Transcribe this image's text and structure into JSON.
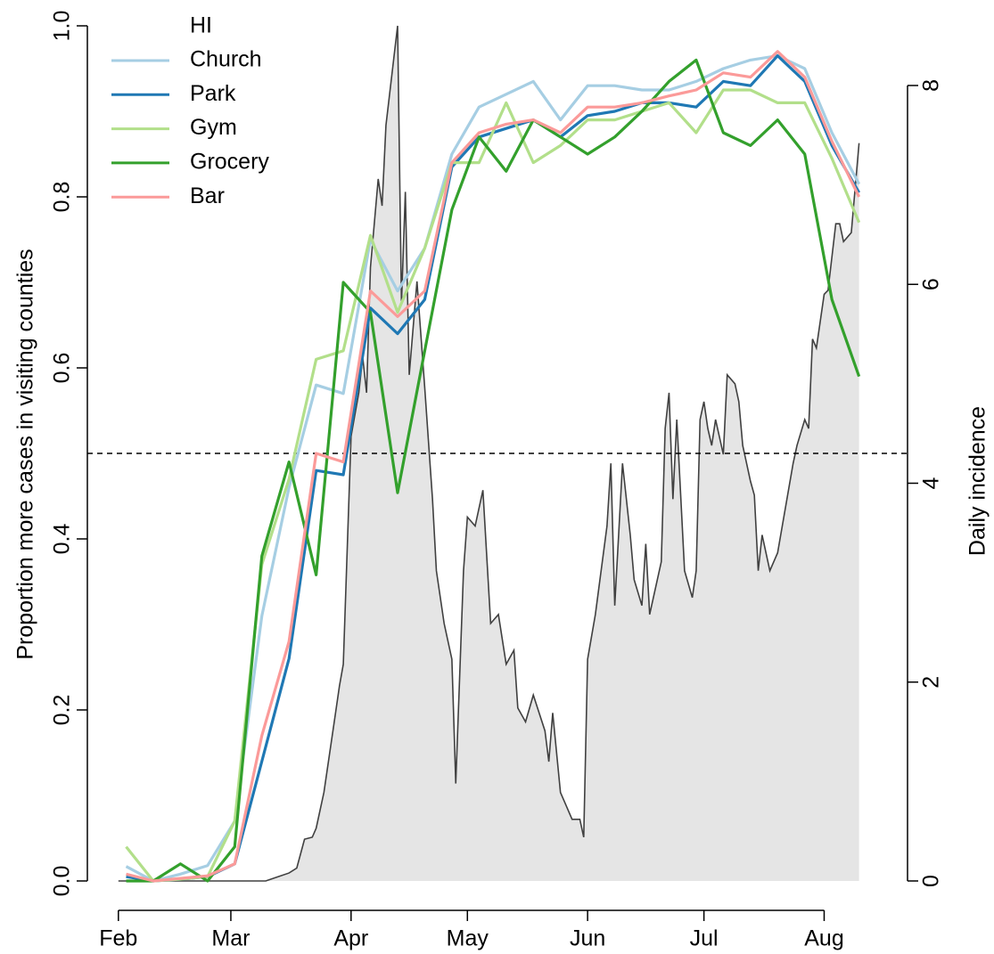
{
  "chart_data": {
    "type": "line",
    "ylabel": "Proportion more cases in visiting counties",
    "y2label": "Daily incidence",
    "legend_title": "HI",
    "legend": "top-left",
    "xlim": [
      -8,
      203.5
    ],
    "xticks": [
      {
        "value": 0,
        "label": "Feb"
      },
      {
        "value": 29,
        "label": "Mar"
      },
      {
        "value": 60,
        "label": "Apr"
      },
      {
        "value": 90,
        "label": "May"
      },
      {
        "value": 121,
        "label": "Jun"
      },
      {
        "value": 151,
        "label": "Jul"
      },
      {
        "value": 182,
        "label": "Aug"
      }
    ],
    "ylim": [
      0,
      1
    ],
    "yticks": [
      {
        "value": 0,
        "label": "0.0"
      },
      {
        "value": 0.2,
        "label": "0.2"
      },
      {
        "value": 0.4,
        "label": "0.4"
      },
      {
        "value": 0.6,
        "label": "0.6"
      },
      {
        "value": 0.8,
        "label": "0.8"
      },
      {
        "value": 1,
        "label": "1.0"
      }
    ],
    "y2lim": [
      0,
      8.6
    ],
    "y2ticks": [
      0,
      2,
      4,
      6,
      8
    ],
    "hline": 0.5,
    "x": [
      2,
      9,
      16,
      23,
      30,
      37,
      44,
      51,
      58,
      65,
      72,
      79,
      86,
      93,
      100,
      107,
      114,
      121,
      128,
      135,
      142,
      149,
      156,
      163,
      170,
      177,
      184,
      191
    ],
    "series": [
      {
        "name": "Church",
        "color": "#a6cee3",
        "values": [
          0.017,
          0.0,
          0.008,
          0.018,
          0.07,
          0.31,
          0.46,
          0.58,
          0.57,
          0.75,
          0.69,
          0.74,
          0.85,
          0.905,
          0.92,
          0.935,
          0.89,
          0.93,
          0.93,
          0.925,
          0.925,
          0.935,
          0.95,
          0.96,
          0.965,
          0.95,
          0.875,
          0.815
        ]
      },
      {
        "name": "Park",
        "color": "#1f78b4",
        "values": [
          0.005,
          0.0,
          0.002,
          0.005,
          0.02,
          0.14,
          0.26,
          0.48,
          0.475,
          0.67,
          0.64,
          0.68,
          0.835,
          0.87,
          0.88,
          0.89,
          0.87,
          0.895,
          0.9,
          0.91,
          0.91,
          0.905,
          0.935,
          0.93,
          0.965,
          0.935,
          0.86,
          0.805
        ]
      },
      {
        "name": "Gym",
        "color": "#b2df8a",
        "values": [
          0.04,
          0.0,
          0.002,
          0.005,
          0.07,
          0.37,
          0.47,
          0.61,
          0.62,
          0.755,
          0.665,
          0.74,
          0.84,
          0.84,
          0.91,
          0.84,
          0.86,
          0.89,
          0.89,
          0.9,
          0.91,
          0.875,
          0.925,
          0.925,
          0.91,
          0.91,
          0.845,
          0.77
        ]
      },
      {
        "name": "Grocery",
        "color": "#33a02c",
        "values": [
          0.0,
          0.0,
          0.02,
          0.0,
          0.04,
          0.38,
          0.49,
          0.358,
          0.7,
          0.665,
          0.454,
          0.62,
          0.785,
          0.87,
          0.83,
          0.89,
          0.87,
          0.85,
          0.87,
          0.9,
          0.935,
          0.96,
          0.875,
          0.86,
          0.89,
          0.85,
          0.68,
          0.59
        ]
      },
      {
        "name": "Bar",
        "color": "#fb9a99",
        "values": [
          0.008,
          0.0,
          0.003,
          0.006,
          0.02,
          0.17,
          0.28,
          0.5,
          0.49,
          0.69,
          0.66,
          0.69,
          0.84,
          0.875,
          0.885,
          0.89,
          0.875,
          0.905,
          0.905,
          0.91,
          0.918,
          0.925,
          0.945,
          0.94,
          0.97,
          0.94,
          0.865,
          0.8
        ]
      }
    ],
    "incidence": {
      "axis": "y2",
      "color": "#404040",
      "fill": "#e5e5e5",
      "x": [
        0,
        38,
        41,
        44,
        46,
        48,
        50,
        51,
        53,
        56,
        57,
        58,
        60,
        62,
        63,
        64,
        65,
        67,
        68,
        69,
        72,
        73,
        74,
        75,
        77,
        79,
        81,
        82,
        84,
        86,
        87,
        89,
        90,
        92,
        94,
        96,
        98,
        100,
        102,
        103,
        105,
        107,
        110,
        111,
        112,
        114,
        117,
        119,
        120,
        121,
        123,
        126,
        127,
        128,
        129,
        130,
        132,
        133,
        135,
        136,
        137,
        140,
        141,
        142,
        143,
        144,
        146,
        148,
        149,
        150,
        151,
        152,
        153,
        154,
        156,
        157,
        159,
        160,
        161,
        163,
        164,
        165,
        166,
        168,
        170,
        172,
        174,
        175,
        177,
        178,
        179,
        180,
        182,
        183,
        185,
        186,
        187,
        189,
        191
      ],
      "values": [
        0,
        0,
        0.04,
        0.08,
        0.13,
        0.42,
        0.44,
        0.53,
        0.89,
        1.69,
        1.96,
        2.18,
        4.47,
        4.91,
        5.27,
        4.91,
        6.17,
        7.06,
        6.79,
        7.6,
        8.6,
        5.81,
        6.93,
        5.09,
        6.03,
        4.96,
        3.84,
        3.12,
        2.59,
        2.23,
        0.98,
        3.12,
        3.66,
        3.57,
        3.93,
        2.59,
        2.68,
        2.18,
        2.32,
        1.74,
        1.6,
        1.87,
        1.51,
        1.2,
        1.69,
        0.89,
        0.62,
        0.62,
        0.44,
        2.23,
        2.68,
        3.57,
        4.2,
        2.77,
        3.48,
        4.2,
        3.48,
        3.03,
        2.77,
        3.39,
        2.68,
        3.21,
        4.55,
        4.91,
        3.84,
        4.64,
        3.12,
        2.85,
        3.12,
        4.64,
        4.82,
        4.55,
        4.38,
        4.64,
        4.29,
        5.09,
        5.0,
        4.82,
        4.38,
        4.02,
        3.88,
        3.12,
        3.48,
        3.12,
        3.3,
        3.75,
        4.2,
        4.38,
        4.64,
        4.55,
        5.45,
        5.36,
        5.9,
        5.94,
        6.61,
        6.61,
        6.43,
        6.52,
        7.42
      ]
    }
  }
}
